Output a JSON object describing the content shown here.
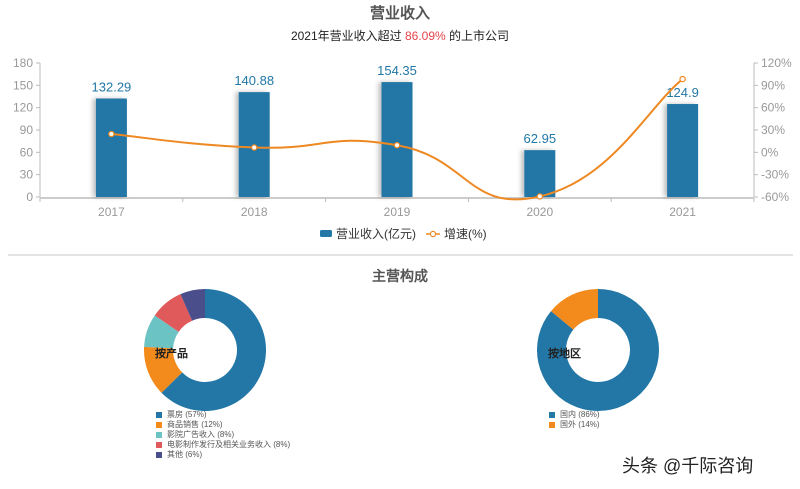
{
  "header": {
    "title": "营业收入",
    "subtitle_prefix": "2021年营业收入超过",
    "subtitle_highlight": "86.09%",
    "subtitle_suffix": "的上市公司"
  },
  "colors": {
    "bar": "#2277a6",
    "line": "#ee8822",
    "highlight": "#e6444b",
    "pie": [
      "#2277a6",
      "#f28a1c",
      "#6cc3c4",
      "#e05a5c",
      "#4a4f8c"
    ]
  },
  "chart_data": [
    {
      "type": "bar+line",
      "title": "营业收入",
      "categories": [
        "2017",
        "2018",
        "2019",
        "2020",
        "2021"
      ],
      "series": [
        {
          "name": "营业收入(亿元)",
          "type": "bar",
          "axis": "left",
          "values": [
            132.29,
            140.88,
            154.35,
            62.95,
            124.9
          ],
          "labels": [
            "132.29",
            "140.88",
            "154.35",
            "62.95",
            "124.9"
          ]
        },
        {
          "name": "增速(%)",
          "type": "line",
          "axis": "right",
          "values": [
            24.6,
            6.49,
            9.56,
            -59.22,
            98.41
          ]
        }
      ],
      "left_axis": {
        "ylim": [
          0,
          180
        ],
        "ticks": [
          "0",
          "30",
          "60",
          "90",
          "120",
          "150",
          "180"
        ]
      },
      "right_axis": {
        "ylim": [
          -60,
          120
        ],
        "ticks": [
          "-60%",
          "-30%",
          "0%",
          "30%",
          "60%",
          "90%",
          "120%"
        ]
      },
      "legend": [
        "营业收入(亿元)",
        "增速(%)"
      ],
      "legend_position": "bottom",
      "grid": false
    },
    {
      "type": "pie",
      "title": "按产品",
      "categories": [
        "票房",
        "商品销售",
        "影院广告收入",
        "电影制作发行及相关业务收入",
        "其他"
      ],
      "values": [
        57,
        12,
        8,
        8,
        6
      ],
      "labels": [
        "票房 (57%)",
        "商品销售 (12%)",
        "影院广告收入 (8%)",
        "电影制作发行及相关业务收入 (8%)",
        "其他 (6%)"
      ]
    },
    {
      "type": "pie",
      "title": "按地区",
      "categories": [
        "国内",
        "国外"
      ],
      "values": [
        86,
        14
      ],
      "labels": [
        "国内 (86%)",
        "国外 (14%)"
      ]
    }
  ],
  "section": {
    "title": "主营构成"
  },
  "watermark": "头条 @千际咨询"
}
